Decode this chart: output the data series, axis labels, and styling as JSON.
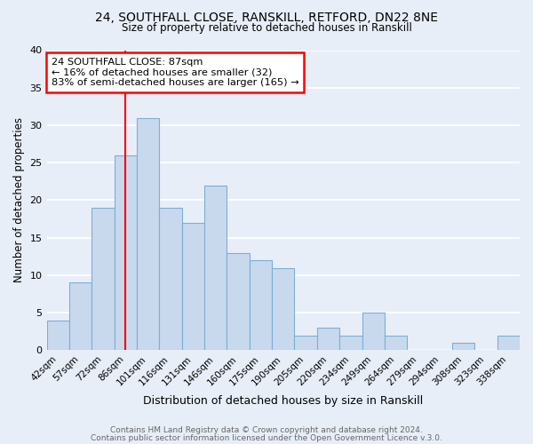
{
  "title1": "24, SOUTHFALL CLOSE, RANSKILL, RETFORD, DN22 8NE",
  "title2": "Size of property relative to detached houses in Ranskill",
  "xlabel": "Distribution of detached houses by size in Ranskill",
  "ylabel": "Number of detached properties",
  "bar_color": "#c8d9ee",
  "bar_edge_color": "#7bafd4",
  "bg_color": "#e8eef8",
  "plot_bg_color": "#e8eef8",
  "grid_color": "#ffffff",
  "categories": [
    "42sqm",
    "57sqm",
    "72sqm",
    "86sqm",
    "101sqm",
    "116sqm",
    "131sqm",
    "146sqm",
    "160sqm",
    "175sqm",
    "190sqm",
    "205sqm",
    "220sqm",
    "234sqm",
    "249sqm",
    "264sqm",
    "279sqm",
    "294sqm",
    "308sqm",
    "323sqm",
    "338sqm"
  ],
  "values": [
    4,
    9,
    19,
    26,
    31,
    19,
    17,
    22,
    13,
    12,
    11,
    2,
    3,
    2,
    5,
    2,
    0,
    0,
    1,
    0,
    2
  ],
  "ylim": [
    0,
    40
  ],
  "yticks": [
    0,
    5,
    10,
    15,
    20,
    25,
    30,
    35,
    40
  ],
  "vline_x_index": 3,
  "annotation_line1": "24 SOUTHFALL CLOSE: 87sqm",
  "annotation_line2": "← 16% of detached houses are smaller (32)",
  "annotation_line3": "83% of semi-detached houses are larger (165) →",
  "footer1": "Contains HM Land Registry data © Crown copyright and database right 2024.",
  "footer2": "Contains public sector information licensed under the Open Government Licence v.3.0."
}
